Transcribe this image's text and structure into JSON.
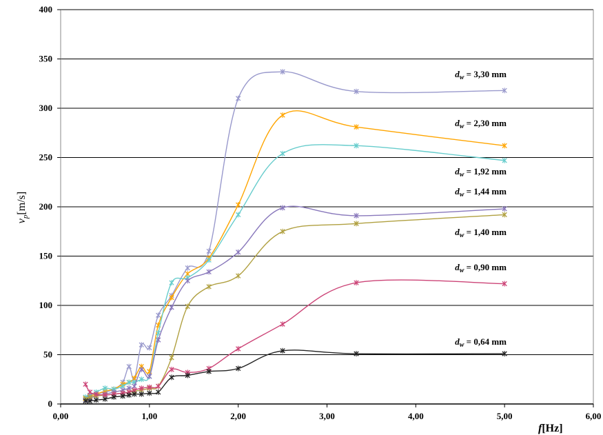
{
  "chart_data": {
    "type": "line",
    "title": "",
    "xlabel_main": "f",
    "xlabel_unit": "[Hz]",
    "ylabel_main": "v",
    "ylabel_sub": "p",
    "ylabel_unit": "[m/s]",
    "xlim": [
      0,
      6
    ],
    "ylim": [
      0,
      400
    ],
    "xticks": [
      0,
      1,
      2,
      3,
      4,
      5,
      6
    ],
    "xtick_labels": [
      "0,00",
      "1,00",
      "2,00",
      "3,00",
      "4,00",
      "5,00",
      "6,00"
    ],
    "yticks": [
      0,
      50,
      100,
      150,
      200,
      250,
      300,
      350,
      400
    ],
    "ytick_labels": [
      "0",
      "50",
      "100",
      "150",
      "200",
      "250",
      "300",
      "350",
      "400"
    ],
    "grid": "horizontal",
    "legend": "inline-labels",
    "series": [
      {
        "name": "d_w = 3,30 mm",
        "label_prefix": "d",
        "label_sub": "w",
        "label_value": " = 3,30 mm",
        "color": "#9999cc",
        "x": [
          0.28,
          0.33,
          0.4,
          0.5,
          0.6,
          0.7,
          0.77,
          0.83,
          0.91,
          1.0,
          1.1,
          1.25,
          1.43,
          1.67,
          2.0,
          2.5,
          3.33,
          5.0
        ],
        "y": [
          5,
          8,
          10,
          12,
          15,
          22,
          38,
          25,
          60,
          57,
          90,
          110,
          138,
          155,
          310,
          337,
          317,
          318
        ]
      },
      {
        "name": "d_w = 2,30 mm",
        "label_prefix": "d",
        "label_sub": "w",
        "label_value": " = 2,30 mm",
        "color": "#ffa500",
        "x": [
          0.28,
          0.33,
          0.4,
          0.5,
          0.6,
          0.7,
          0.77,
          0.83,
          0.91,
          1.0,
          1.1,
          1.25,
          1.43,
          1.67,
          2.0,
          2.5,
          3.33,
          5.0
        ],
        "y": [
          6,
          8,
          10,
          13,
          15,
          20,
          22,
          26,
          38,
          33,
          80,
          108,
          132,
          148,
          202,
          293,
          281,
          262
        ]
      },
      {
        "name": "d_w = 1,92 mm",
        "label_prefix": "d",
        "label_sub": "w",
        "label_value": " = 1,92 mm",
        "color": "#66cccc",
        "x": [
          0.28,
          0.33,
          0.4,
          0.5,
          0.6,
          0.7,
          0.77,
          0.83,
          0.91,
          1.0,
          1.1,
          1.25,
          1.43,
          1.67,
          2.0,
          2.5,
          3.33,
          5.0
        ],
        "y": [
          7,
          9,
          12,
          16,
          15,
          18,
          22,
          22,
          25,
          28,
          72,
          123,
          128,
          146,
          192,
          254,
          262,
          247
        ]
      },
      {
        "name": "d_w = 1,44 mm",
        "label_prefix": "d",
        "label_sub": "w",
        "label_value": " = 1,44 mm",
        "color": "#8877bb",
        "x": [
          0.28,
          0.33,
          0.4,
          0.5,
          0.6,
          0.7,
          0.77,
          0.83,
          0.91,
          1.0,
          1.1,
          1.25,
          1.43,
          1.67,
          2.0,
          2.5,
          3.33,
          5.0
        ],
        "y": [
          4,
          6,
          8,
          10,
          12,
          14,
          16,
          18,
          35,
          28,
          65,
          98,
          125,
          134,
          154,
          199,
          191,
          198
        ]
      },
      {
        "name": "d_w = 1,40 mm",
        "label_prefix": "d",
        "label_sub": "w",
        "label_value": " = 1,40 mm",
        "color": "#b0a040",
        "x": [
          0.28,
          0.33,
          0.4,
          0.5,
          0.6,
          0.7,
          0.77,
          0.83,
          0.91,
          1.0,
          1.1,
          1.25,
          1.43,
          1.67,
          2.0,
          2.5,
          3.33,
          5.0
        ],
        "y": [
          5,
          7,
          8,
          9,
          10,
          11,
          12,
          13,
          14,
          16,
          18,
          47,
          99,
          119,
          130,
          175,
          183,
          192
        ]
      },
      {
        "name": "d_w = 0,90 mm",
        "label_prefix": "d",
        "label_sub": "w",
        "label_value": " = 0,90 mm",
        "color": "#cc4477",
        "x": [
          0.28,
          0.33,
          0.4,
          0.5,
          0.6,
          0.7,
          0.77,
          0.83,
          0.91,
          1.0,
          1.1,
          1.25,
          1.43,
          1.67,
          2.0,
          2.5,
          3.33,
          5.0
        ],
        "y": [
          20,
          12,
          10,
          9,
          10,
          11,
          12,
          14,
          16,
          17,
          18,
          35,
          32,
          36,
          56,
          81,
          123,
          122
        ]
      },
      {
        "name": "d_w = 0,64 mm",
        "label_prefix": "d",
        "label_sub": "w",
        "label_value": " = 0,64 mm",
        "color": "#222222",
        "x": [
          0.28,
          0.33,
          0.4,
          0.5,
          0.6,
          0.7,
          0.77,
          0.83,
          0.91,
          1.0,
          1.1,
          1.25,
          1.43,
          1.67,
          2.0,
          2.5,
          3.33,
          5.0
        ],
        "y": [
          3,
          3,
          4,
          5,
          7,
          8,
          9,
          10,
          10,
          11,
          12,
          27,
          29,
          33,
          36,
          54,
          51,
          51
        ]
      }
    ]
  }
}
